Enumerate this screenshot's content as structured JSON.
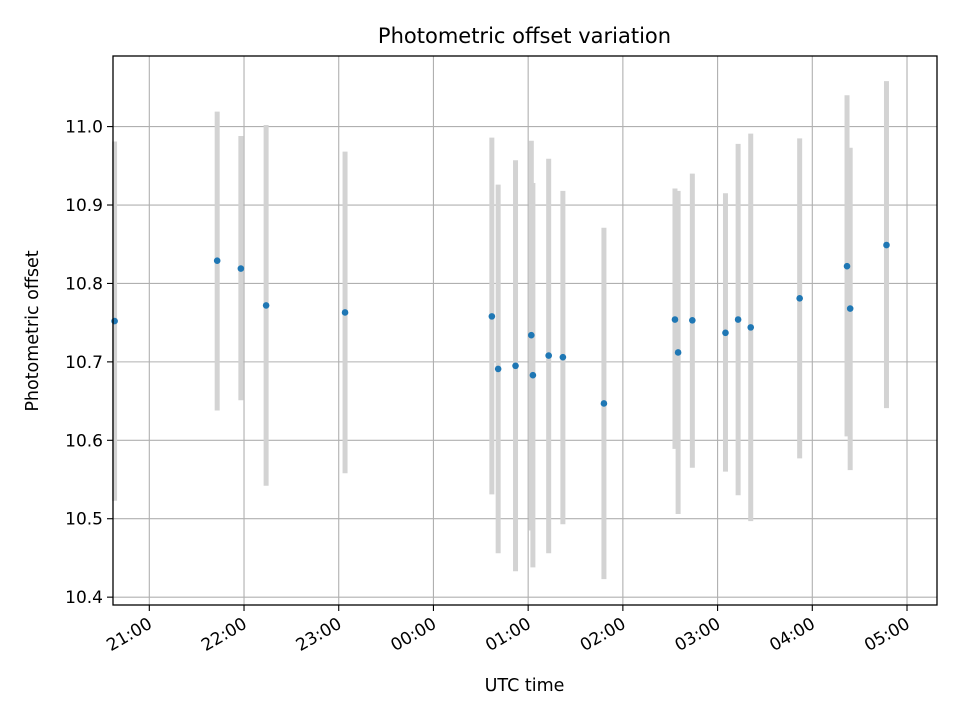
{
  "chart_data": {
    "type": "scatter",
    "title": "Photometric offset variation",
    "xlabel": "UTC time",
    "ylabel": "Photometric offset",
    "x_ticks": [
      "21:00",
      "22:00",
      "23:00",
      "00:00",
      "01:00",
      "02:00",
      "03:00",
      "04:00",
      "05:00"
    ],
    "y_ticks": [
      "10.4",
      "10.5",
      "10.6",
      "10.7",
      "10.8",
      "10.9",
      "11.0"
    ],
    "xlim": [
      "20:37",
      "05:19"
    ],
    "ylim": [
      10.39,
      11.09
    ],
    "grid": true,
    "colors": {
      "points": "#1f77b4",
      "errorbars": "#d3d3d3",
      "grid": "#b0b0b0"
    },
    "points": [
      {
        "x": "20:38",
        "y": 10.752,
        "y_low": 10.523,
        "y_high": 10.981
      },
      {
        "x": "21:43",
        "y": 10.829,
        "y_low": 10.638,
        "y_high": 11.019
      },
      {
        "x": "21:58",
        "y": 10.819,
        "y_low": 10.651,
        "y_high": 10.988
      },
      {
        "x": "22:14",
        "y": 10.772,
        "y_low": 10.542,
        "y_high": 11.002
      },
      {
        "x": "23:04",
        "y": 10.763,
        "y_low": 10.558,
        "y_high": 10.968
      },
      {
        "x": "00:37",
        "y": 10.758,
        "y_low": 10.531,
        "y_high": 10.986
      },
      {
        "x": "00:41",
        "y": 10.691,
        "y_low": 10.456,
        "y_high": 10.926
      },
      {
        "x": "00:52",
        "y": 10.695,
        "y_low": 10.433,
        "y_high": 10.957
      },
      {
        "x": "01:02",
        "y": 10.734,
        "y_low": 10.485,
        "y_high": 10.982
      },
      {
        "x": "01:03",
        "y": 10.683,
        "y_low": 10.438,
        "y_high": 10.928
      },
      {
        "x": "01:13",
        "y": 10.708,
        "y_low": 10.456,
        "y_high": 10.959
      },
      {
        "x": "01:22",
        "y": 10.706,
        "y_low": 10.493,
        "y_high": 10.918
      },
      {
        "x": "01:48",
        "y": 10.647,
        "y_low": 10.423,
        "y_high": 10.871
      },
      {
        "x": "02:33",
        "y": 10.754,
        "y_low": 10.589,
        "y_high": 10.921
      },
      {
        "x": "02:35",
        "y": 10.712,
        "y_low": 10.506,
        "y_high": 10.918
      },
      {
        "x": "02:44",
        "y": 10.753,
        "y_low": 10.565,
        "y_high": 10.94
      },
      {
        "x": "03:05",
        "y": 10.737,
        "y_low": 10.56,
        "y_high": 10.915
      },
      {
        "x": "03:13",
        "y": 10.754,
        "y_low": 10.53,
        "y_high": 10.978
      },
      {
        "x": "03:21",
        "y": 10.744,
        "y_low": 10.497,
        "y_high": 10.991
      },
      {
        "x": "03:52",
        "y": 10.781,
        "y_low": 10.577,
        "y_high": 10.985
      },
      {
        "x": "04:22",
        "y": 10.822,
        "y_low": 10.605,
        "y_high": 11.04
      },
      {
        "x": "04:24",
        "y": 10.768,
        "y_low": 10.562,
        "y_high": 10.973
      },
      {
        "x": "04:47",
        "y": 10.849,
        "y_low": 10.641,
        "y_high": 11.058
      }
    ]
  }
}
